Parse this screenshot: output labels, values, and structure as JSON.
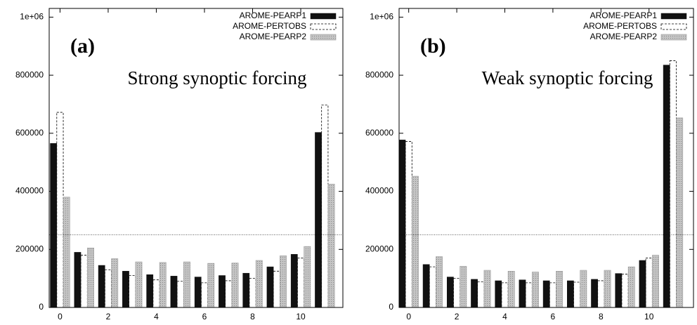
{
  "chart_data": [
    {
      "type": "bar",
      "annotations": [
        "(a)",
        "Strong synoptic forcing"
      ],
      "x": [
        0,
        1,
        2,
        3,
        4,
        5,
        6,
        7,
        8,
        9,
        10,
        11
      ],
      "series": [
        {
          "name": "AROME-PEARP1",
          "color": "#111111",
          "line_style": "solid",
          "values": [
            565000,
            190000,
            145000,
            125000,
            113000,
            108000,
            105000,
            110000,
            118000,
            140000,
            183000,
            603000
          ]
        },
        {
          "name": "AROME-PERTOBS",
          "color": "#ffffff",
          "line_style": "dashed",
          "values": [
            672000,
            180000,
            130000,
            110000,
            95000,
            90000,
            85000,
            92000,
            100000,
            125000,
            170000,
            697000
          ]
        },
        {
          "name": "AROME-PEARP2",
          "color": "#bbbbbb",
          "line_style": "dotted",
          "values": [
            380000,
            205000,
            168000,
            157000,
            155000,
            157000,
            152000,
            153000,
            162000,
            178000,
            210000,
            425000
          ]
        }
      ],
      "reference_line": 250000,
      "xlim": [
        -0.45,
        11.75
      ],
      "xticks": [
        0,
        2,
        4,
        6,
        8,
        10
      ],
      "ylim": [
        0,
        1030000
      ],
      "yticks": [
        0,
        200000,
        400000,
        600000,
        800000,
        {
          "value": 1000000,
          "label": "1e+06"
        }
      ],
      "legend": "upper right"
    },
    {
      "type": "bar",
      "annotations": [
        "(b)",
        "Weak synoptic forcing"
      ],
      "x": [
        0,
        1,
        2,
        3,
        4,
        5,
        6,
        7,
        8,
        9,
        10,
        11
      ],
      "series": [
        {
          "name": "AROME-PEARP1",
          "color": "#111111",
          "line_style": "solid",
          "values": [
            577000,
            148000,
            105000,
            97000,
            92000,
            95000,
            92000,
            92000,
            97000,
            117000,
            162000,
            835000
          ]
        },
        {
          "name": "AROME-PERTOBS",
          "color": "#ffffff",
          "line_style": "dashed",
          "values": [
            572000,
            140000,
            100000,
            88000,
            85000,
            85000,
            85000,
            87000,
            92000,
            115000,
            170000,
            850000
          ]
        },
        {
          "name": "AROME-PEARP2",
          "color": "#bbbbbb",
          "line_style": "dotted",
          "values": [
            452000,
            175000,
            142000,
            128000,
            125000,
            122000,
            125000,
            128000,
            128000,
            140000,
            180000,
            653000
          ]
        }
      ],
      "reference_line": 250000,
      "xlim": [
        -0.4,
        11.85
      ],
      "xticks": [
        0,
        2,
        4,
        6,
        8,
        10
      ],
      "ylim": [
        0,
        1030000
      ],
      "yticks": [
        0,
        200000,
        400000,
        600000,
        800000,
        {
          "value": 1000000,
          "label": "1e+06"
        }
      ],
      "legend": "upper right"
    }
  ]
}
